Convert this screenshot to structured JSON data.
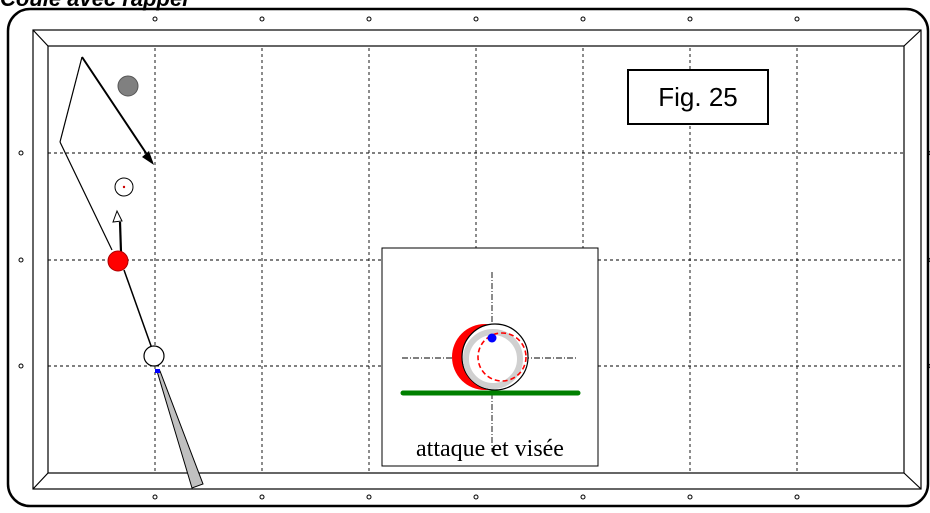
{
  "heading": "Coulé avec rappel",
  "figure_label": "Fig. 25",
  "inset": {
    "caption": "attaque et visée"
  },
  "colors": {
    "red_ball": "#ff0000",
    "grey_ball": "#808080",
    "white_ball": "#ffffff",
    "aim_dot": "#0000ff",
    "cloth_line": "#008000",
    "cue": "#c0c0c0"
  },
  "elements": {
    "table": "billiard-table",
    "balls": [
      "grey-ball",
      "white-ball-target",
      "red-ball",
      "cue-ball"
    ],
    "cue": "cue-stick",
    "trajectory": "ball-path-with-arrows"
  }
}
